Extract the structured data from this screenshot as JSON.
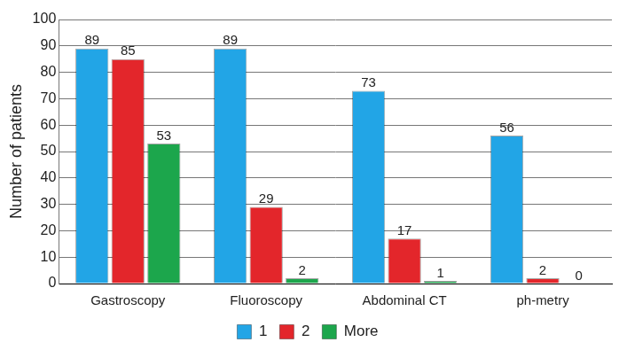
{
  "chart_data": {
    "type": "bar",
    "y_label": "Number of patients",
    "categories": [
      "Gastroscopy",
      "Fluoroscopy",
      "Abdominal CT",
      "ph-metry"
    ],
    "series": [
      {
        "name": "1",
        "color": "#22a5e6",
        "values": [
          89,
          89,
          73,
          56
        ]
      },
      {
        "name": "2",
        "color": "#e3262b",
        "values": [
          85,
          29,
          17,
          2
        ]
      },
      {
        "name": "More",
        "color": "#1ca64c",
        "values": [
          53,
          2,
          1,
          0
        ]
      }
    ],
    "ylim": [
      0,
      100
    ],
    "yticks": [
      0,
      10,
      20,
      30,
      40,
      50,
      60,
      70,
      80,
      90,
      100
    ],
    "grid": true,
    "legend": "bottom",
    "data_labels": true
  }
}
